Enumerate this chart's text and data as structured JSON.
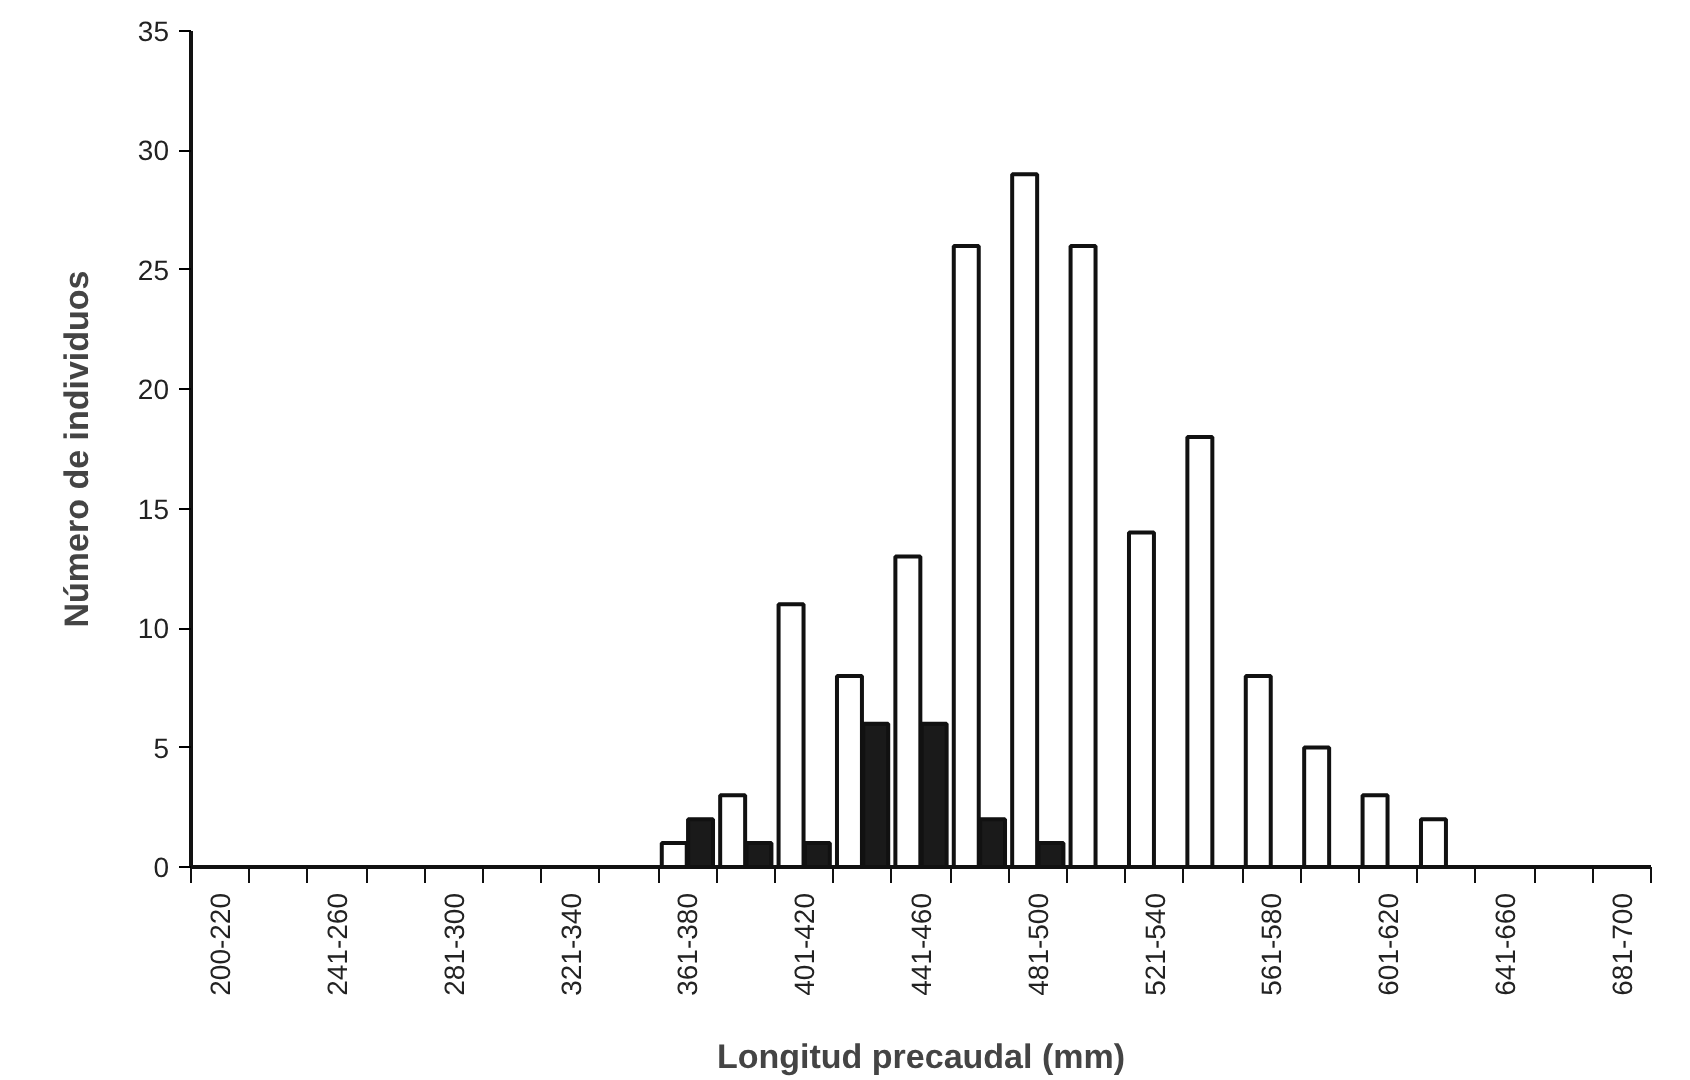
{
  "chart_data": {
    "type": "bar",
    "xlabel": "Longitud precaudal (mm)",
    "ylabel": "Número de individuos",
    "categories": [
      "200-220",
      null,
      "241-260",
      null,
      "281-300",
      null,
      "321-340",
      null,
      "361-380",
      null,
      "401-420",
      null,
      "441-460",
      null,
      "481-500",
      null,
      "521-540",
      null,
      "561-580",
      null,
      "601-620",
      null,
      "641-660",
      null,
      "681-700"
    ],
    "series": [
      {
        "color": "#ffffff",
        "values": [
          null,
          null,
          null,
          null,
          null,
          null,
          null,
          null,
          1,
          3,
          11,
          8,
          13,
          26,
          29,
          26,
          14,
          18,
          8,
          5,
          3,
          2,
          null,
          null,
          null
        ]
      },
      {
        "color": "#1a1a1a",
        "values": [
          null,
          null,
          null,
          null,
          null,
          null,
          null,
          null,
          2,
          1,
          1,
          6,
          6,
          2,
          1,
          null,
          null,
          null,
          null,
          null,
          null,
          null,
          null,
          null,
          null
        ]
      }
    ],
    "ylim": [
      0,
      35
    ],
    "yticks": [
      0,
      5,
      10,
      15,
      20,
      25,
      30,
      35
    ],
    "grid": false
  }
}
